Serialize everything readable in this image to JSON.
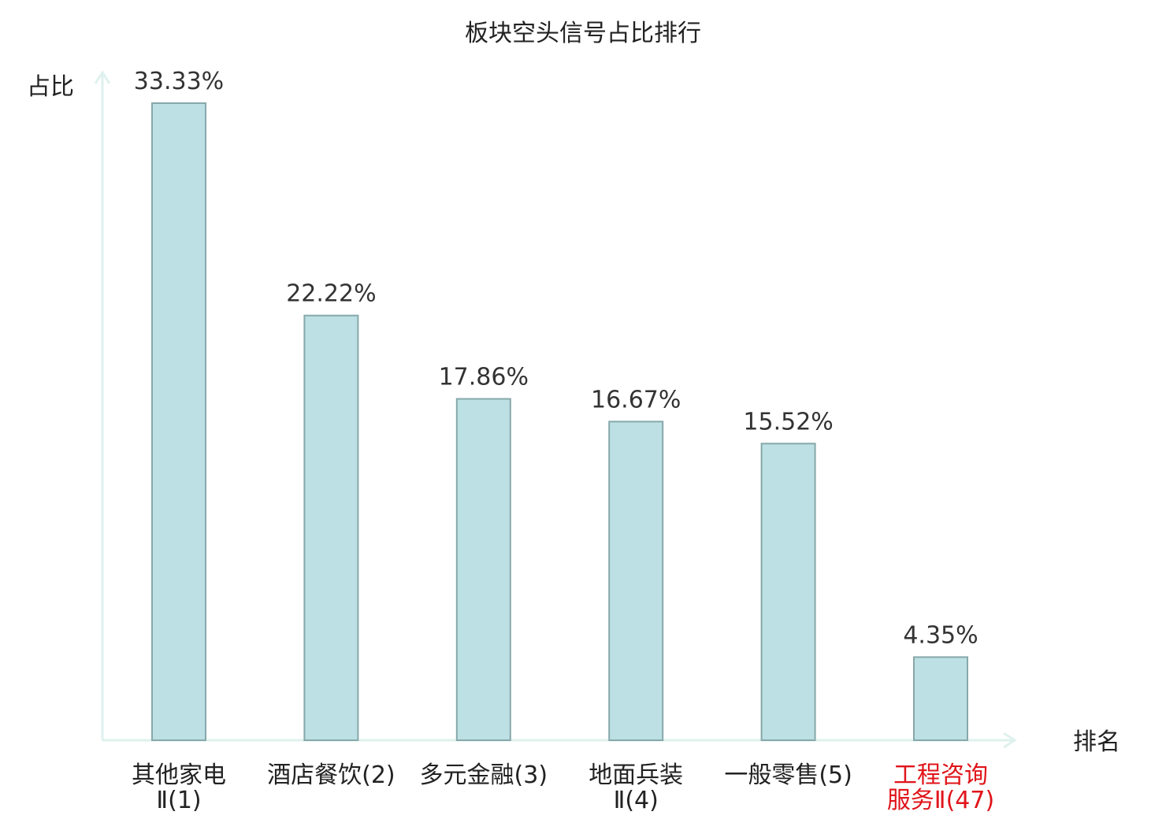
{
  "chart_data": {
    "type": "bar",
    "title": "板块空头信号占比排行",
    "xlabel": "排名",
    "ylabel": "占比",
    "categories": [
      [
        "其他家电",
        "Ⅱ(1)"
      ],
      [
        "酒店餐饮(2)"
      ],
      [
        "多元金融(3)"
      ],
      [
        "地面兵装",
        "Ⅱ(4)"
      ],
      [
        "一般零售(5)"
      ],
      [
        "工程咨询",
        "服务Ⅱ(47)"
      ]
    ],
    "values": [
      33.33,
      22.22,
      17.86,
      16.67,
      15.52,
      4.35
    ],
    "value_labels": [
      "33.33%",
      "22.22%",
      "17.86%",
      "16.67%",
      "15.52%",
      "4.35%"
    ],
    "highlight_index": 5,
    "ylim": [
      0,
      35
    ],
    "grid": false,
    "legend": "none"
  },
  "colors": {
    "bar_fill": "#bce0e3",
    "bar_stroke": "#87a8ab",
    "axis": "#dff1ee",
    "text": "#222222",
    "highlight_text": "#e0141a"
  }
}
